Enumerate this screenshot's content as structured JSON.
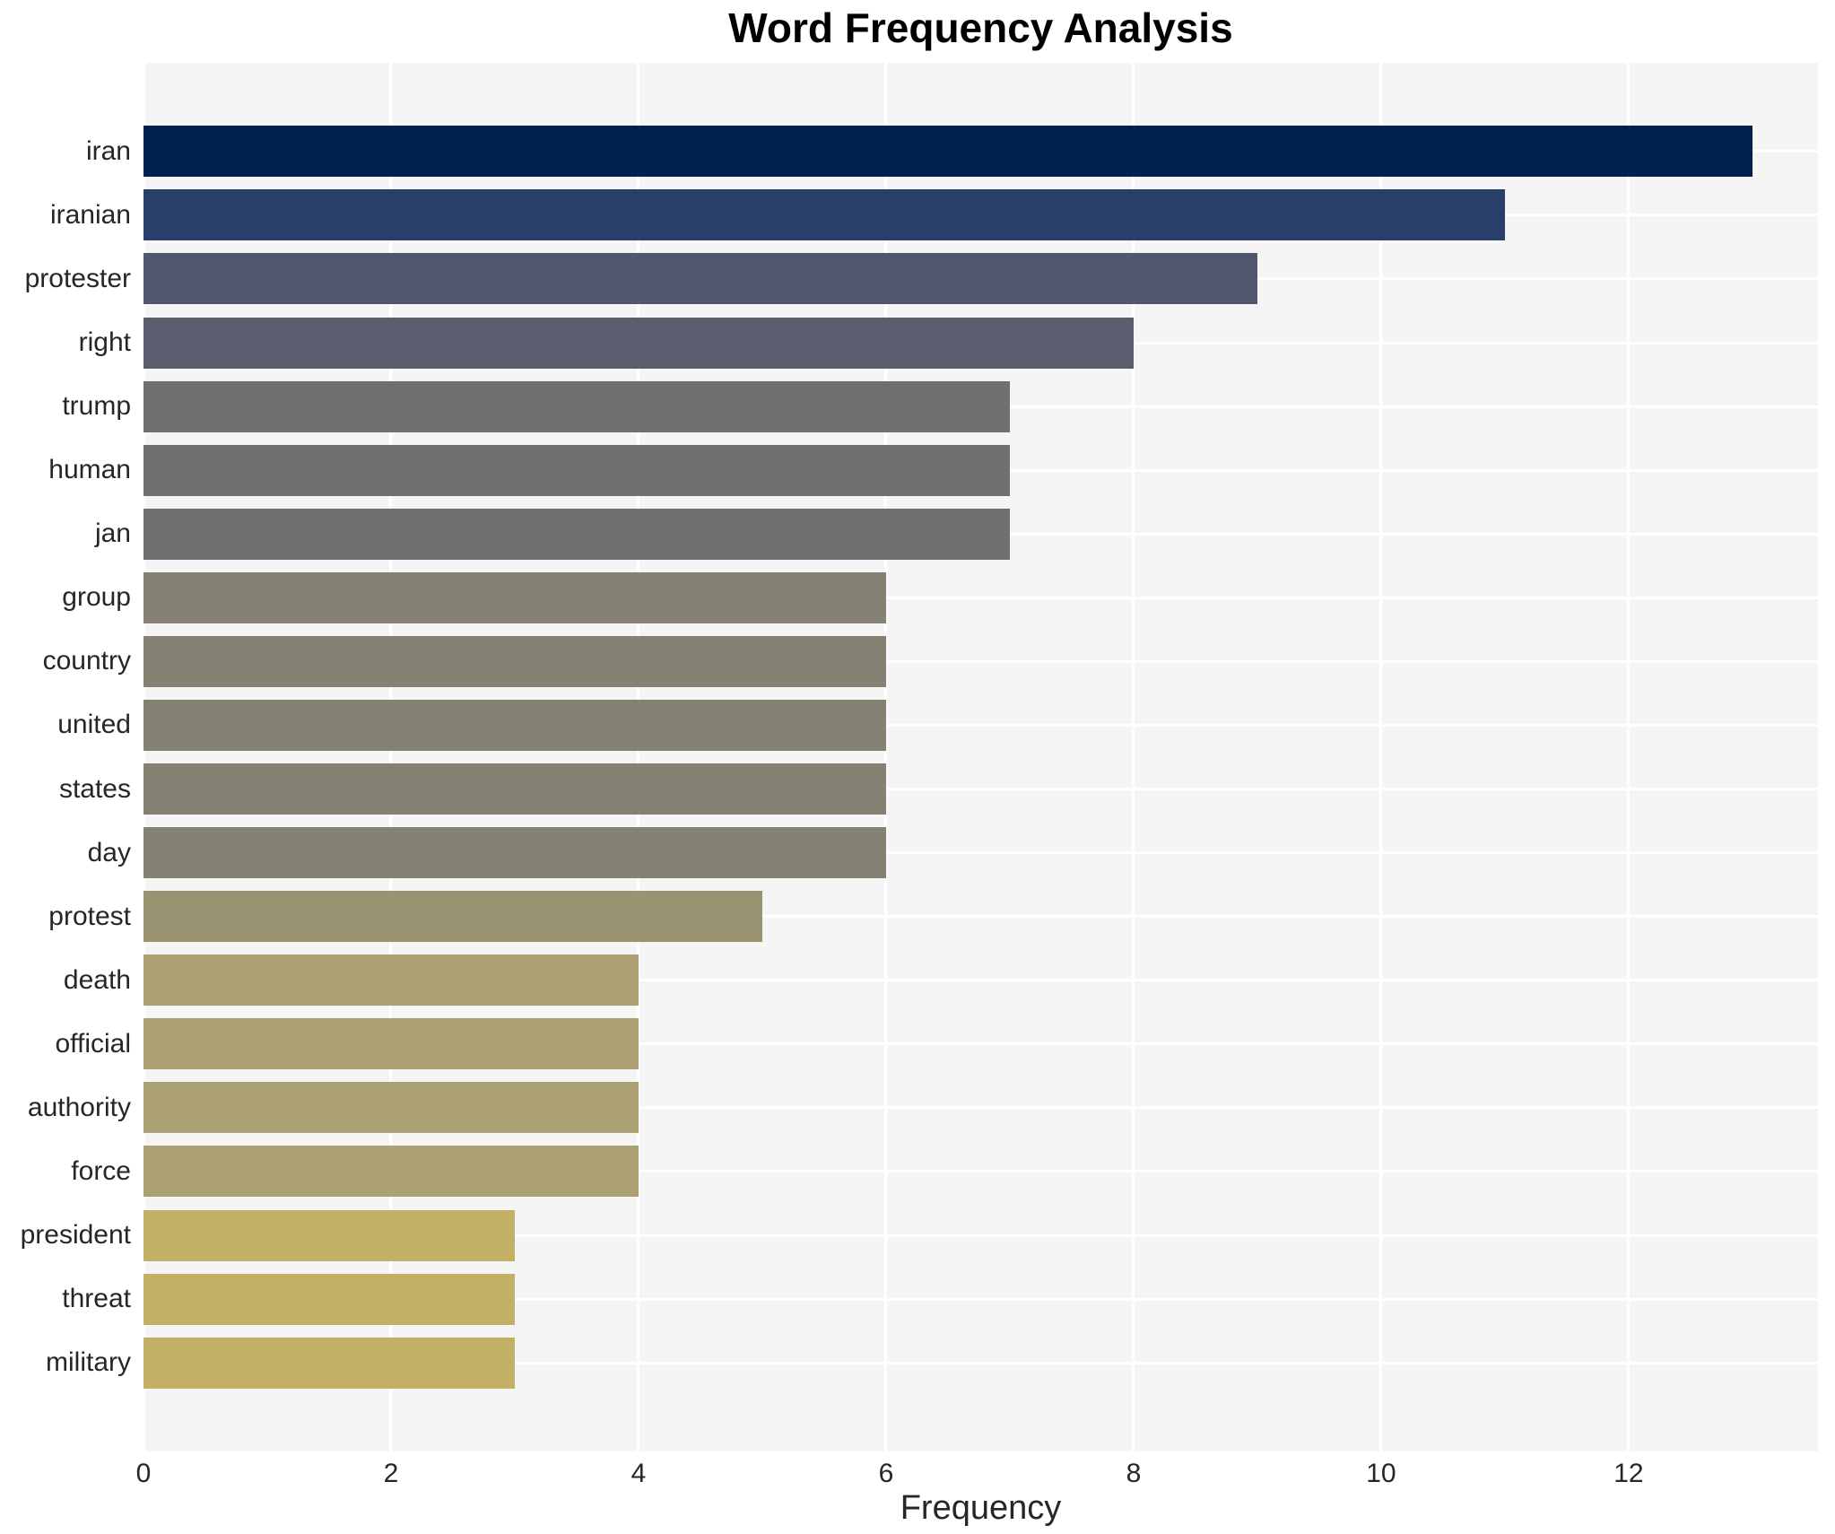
{
  "chart_data": {
    "type": "bar",
    "orientation": "horizontal",
    "title": "Word Frequency Analysis",
    "xlabel": "Frequency",
    "ylabel": "",
    "categories": [
      "iran",
      "iranian",
      "protester",
      "right",
      "trump",
      "human",
      "jan",
      "group",
      "country",
      "united",
      "states",
      "day",
      "protest",
      "death",
      "official",
      "authority",
      "force",
      "president",
      "threat",
      "military"
    ],
    "values": [
      13,
      11,
      9,
      8,
      7,
      7,
      7,
      6,
      6,
      6,
      6,
      6,
      5,
      4,
      4,
      4,
      4,
      3,
      3,
      3
    ],
    "bar_colors": [
      "#02214f",
      "#2a3e6b",
      "#4f566e",
      "#5b5e6e",
      "#6f7070",
      "#6f7070",
      "#6f7070",
      "#858173",
      "#858173",
      "#858173",
      "#858173",
      "#858173",
      "#9a9371",
      "#aba174",
      "#aba174",
      "#aba174",
      "#aba174",
      "#c2b065",
      "#c2b065",
      "#c2b065"
    ],
    "x_ticks": [
      0,
      2,
      4,
      6,
      8,
      10,
      12
    ],
    "xlim": [
      0,
      13.53
    ],
    "grid": "on",
    "legend": "none",
    "plot_background": "#f5f5f6",
    "grid_color": "#ffffff",
    "figure_background": "#ffffff",
    "tick_label_color": "#262626",
    "title_color": "#000000",
    "colormap": "cividis"
  }
}
